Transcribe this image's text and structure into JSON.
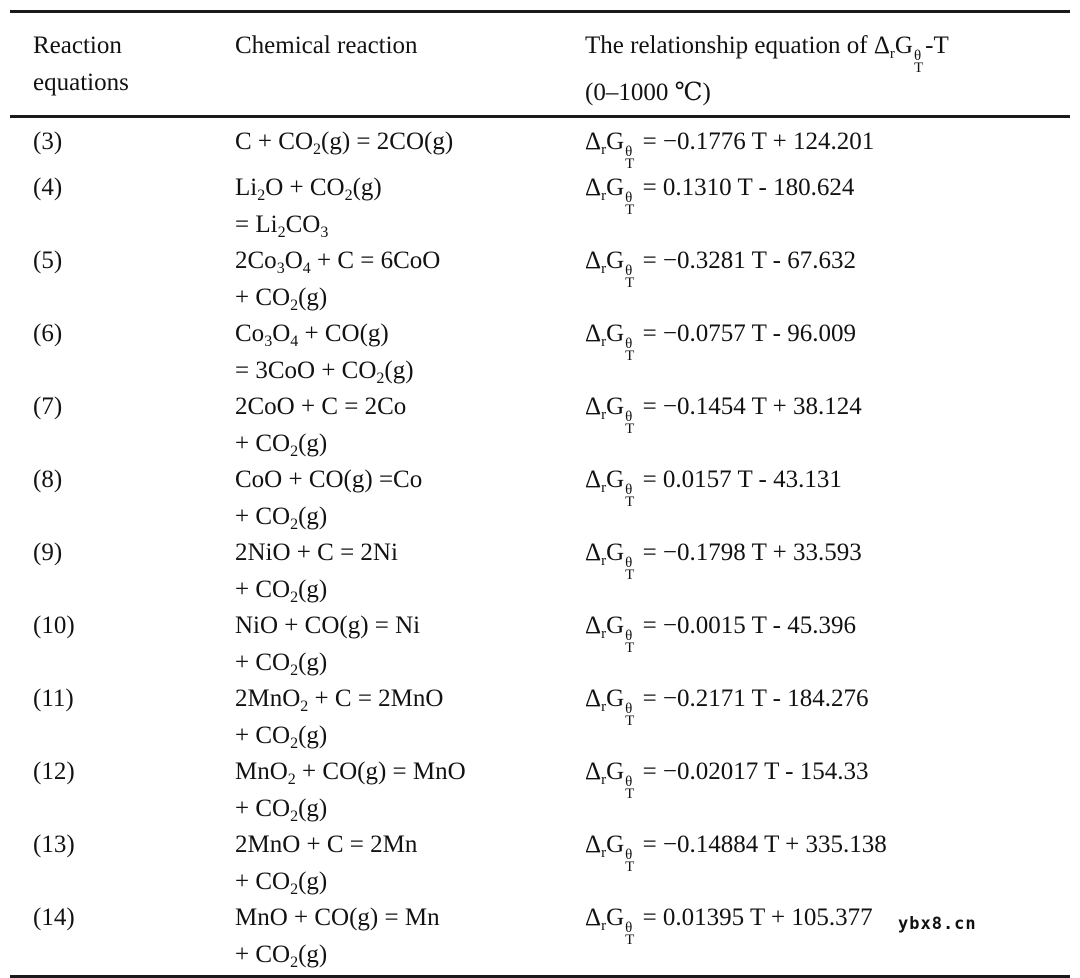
{
  "table": {
    "header": {
      "col1_line1": "Reaction",
      "col1_line2": "equations",
      "col2": "Chemical reaction",
      "col3_prefix": "The relationship equation of ",
      "col3_suffix": "-T",
      "col3_line2": "(0–1000 ℃)"
    },
    "symbol": {
      "delta": "Δ",
      "sub_r": "r",
      "G": "G",
      "sup_theta": "θ",
      "sub_T": "T",
      "equals": "="
    },
    "rows": [
      {
        "num": "(3)",
        "chem": [
          "C + CO2(g) = 2CO(g)"
        ],
        "gibbs": "−0.1776 T + 124.201"
      },
      {
        "num": "(4)",
        "chem": [
          "Li2O + CO2(g)",
          "= Li2CO3"
        ],
        "gibbs": "0.1310 T - 180.624"
      },
      {
        "num": "(5)",
        "chem": [
          "2Co3O4 + C = 6CoO",
          "+ CO2(g)"
        ],
        "gibbs": "−0.3281 T - 67.632"
      },
      {
        "num": "(6)",
        "chem": [
          "Co3O4 + CO(g)",
          "= 3CoO + CO2(g)"
        ],
        "gibbs": "−0.0757 T - 96.009"
      },
      {
        "num": "(7)",
        "chem": [
          "2CoO + C = 2Co",
          "+ CO2(g)"
        ],
        "gibbs": "−0.1454 T + 38.124"
      },
      {
        "num": "(8)",
        "chem": [
          "CoO + CO(g) =Co",
          "+ CO2(g)"
        ],
        "gibbs": "0.0157 T - 43.131"
      },
      {
        "num": "(9)",
        "chem": [
          "2NiO + C = 2Ni",
          "+ CO2(g)"
        ],
        "gibbs": "−0.1798 T + 33.593"
      },
      {
        "num": "(10)",
        "chem": [
          "NiO + CO(g) = Ni",
          "+ CO2(g)"
        ],
        "gibbs": "−0.0015 T - 45.396"
      },
      {
        "num": "(11)",
        "chem": [
          "2MnO2 + C = 2MnO",
          "+ CO2(g)"
        ],
        "gibbs": "−0.2171 T - 184.276"
      },
      {
        "num": "(12)",
        "chem": [
          "MnO2 + CO(g) = MnO",
          "+ CO2(g)"
        ],
        "gibbs": "−0.02017 T - 154.33"
      },
      {
        "num": "(13)",
        "chem": [
          "2MnO + C = 2Mn",
          "+ CO2(g)"
        ],
        "gibbs": "−0.14884 T + 335.138"
      },
      {
        "num": "(14)",
        "chem": [
          "MnO + CO(g) = Mn",
          "+ CO2(g)"
        ],
        "gibbs": "0.01395 T + 105.377"
      }
    ]
  },
  "watermark": "ybx8.cn"
}
